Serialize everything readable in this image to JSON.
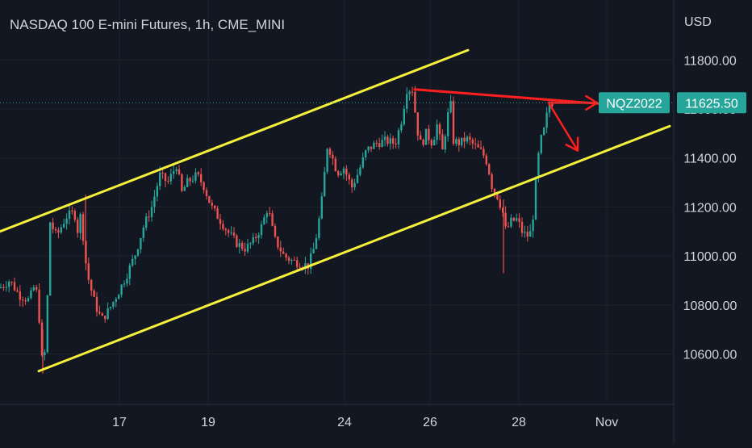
{
  "header": {
    "title": "NASDAQ 100 E-mini Futures, 1h, CME_MINI"
  },
  "price_scale": {
    "currency": "USD"
  },
  "symbol_badge": {
    "label": "NQZ2022",
    "price": "11625.50",
    "color": "#26a69a"
  },
  "colors": {
    "background": "#131722",
    "up": "#26a69a",
    "down": "#ef5350",
    "channel": "#f5f13b",
    "arrows": "#ff1f1f",
    "text": "#d1d4dc"
  },
  "chart_data": {
    "type": "candlestick",
    "title": "NASDAQ 100 E-mini Futures, 1h, CME_MINI",
    "ylabel": "USD",
    "yticks": [
      "11800.00",
      "11600.00",
      "11400.00",
      "11200.00",
      "11000.00",
      "10800.00",
      "10600.00"
    ],
    "ylim": [
      10480,
      11930
    ],
    "xticks": [
      "17",
      "19",
      "24",
      "26",
      "28",
      "Nov"
    ],
    "last_price": 11625.5,
    "price_path": [
      [
        0,
        10870
      ],
      [
        12,
        10900
      ],
      [
        24,
        10840
      ],
      [
        36,
        10820
      ],
      [
        44,
        10890
      ],
      [
        50,
        10700
      ],
      [
        53,
        10520
      ],
      [
        57,
        10660
      ],
      [
        62,
        11140
      ],
      [
        70,
        11080
      ],
      [
        82,
        11160
      ],
      [
        92,
        11180
      ],
      [
        97,
        11090
      ],
      [
        101,
        11200
      ],
      [
        104,
        11020
      ],
      [
        110,
        10900
      ],
      [
        118,
        10800
      ],
      [
        126,
        10740
      ],
      [
        135,
        10780
      ],
      [
        148,
        10860
      ],
      [
        158,
        10930
      ],
      [
        168,
        11010
      ],
      [
        178,
        11120
      ],
      [
        188,
        11200
      ],
      [
        198,
        11330
      ],
      [
        208,
        11300
      ],
      [
        220,
        11380
      ],
      [
        224,
        11250
      ],
      [
        232,
        11300
      ],
      [
        244,
        11330
      ],
      [
        252,
        11290
      ],
      [
        262,
        11200
      ],
      [
        272,
        11150
      ],
      [
        282,
        11100
      ],
      [
        294,
        11050
      ],
      [
        304,
        11030
      ],
      [
        314,
        11060
      ],
      [
        324,
        11120
      ],
      [
        332,
        11200
      ],
      [
        340,
        11070
      ],
      [
        352,
        11000
      ],
      [
        362,
        10980
      ],
      [
        372,
        10970
      ],
      [
        382,
        10960
      ],
      [
        390,
        11040
      ],
      [
        398,
        11200
      ],
      [
        406,
        11460
      ],
      [
        412,
        11400
      ],
      [
        418,
        11340
      ],
      [
        426,
        11360
      ],
      [
        436,
        11280
      ],
      [
        444,
        11340
      ],
      [
        454,
        11430
      ],
      [
        466,
        11460
      ],
      [
        478,
        11470
      ],
      [
        490,
        11460
      ],
      [
        498,
        11560
      ],
      [
        504,
        11680
      ],
      [
        512,
        11680
      ],
      [
        516,
        11530
      ],
      [
        522,
        11450
      ],
      [
        528,
        11500
      ],
      [
        536,
        11460
      ],
      [
        542,
        11540
      ],
      [
        548,
        11420
      ],
      [
        554,
        11550
      ],
      [
        558,
        11640
      ],
      [
        562,
        11470
      ],
      [
        570,
        11460
      ],
      [
        578,
        11480
      ],
      [
        588,
        11450
      ],
      [
        598,
        11420
      ],
      [
        604,
        11380
      ],
      [
        610,
        11280
      ],
      [
        617,
        11240
      ],
      [
        623,
        11180
      ],
      [
        627,
        11100
      ],
      [
        633,
        11140
      ],
      [
        641,
        11150
      ],
      [
        647,
        11100
      ],
      [
        653,
        11080
      ],
      [
        659,
        11100
      ],
      [
        664,
        11300
      ],
      [
        669,
        11460
      ],
      [
        675,
        11520
      ],
      [
        680,
        11620
      ],
      [
        686,
        11630
      ]
    ],
    "drawings": {
      "channel_upper": [
        [
          0,
          11100
        ],
        [
          580,
          11840
        ]
      ],
      "channel_lower": [
        [
          48,
          10530
        ],
        [
          830,
          11530
        ]
      ],
      "trend_line": [
        [
          514,
          11680
        ],
        [
          742,
          11622
        ]
      ],
      "arrow_1": [
        [
          680,
          11625
        ],
        [
          740,
          11625
        ]
      ],
      "arrow_2": [
        [
          680,
          11625
        ],
        [
          716,
          11430
        ]
      ]
    }
  }
}
